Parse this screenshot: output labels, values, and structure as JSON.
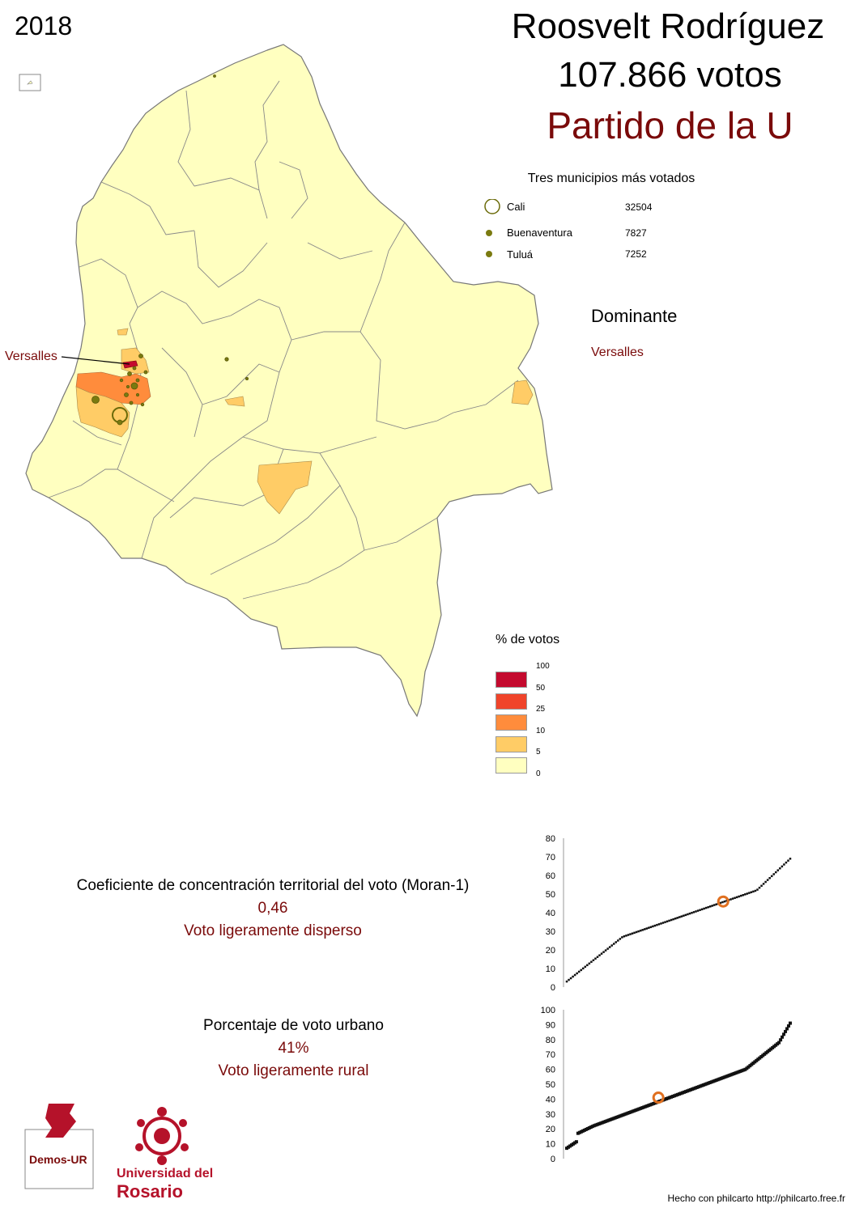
{
  "header": {
    "year": "2018",
    "candidate": "Roosvelt Rodríguez",
    "votes": "107.866 votos",
    "party": "Partido de la U"
  },
  "top_municipalities": {
    "title": "Tres municipios más votados",
    "rows": [
      {
        "name": "Cali",
        "value": "32504"
      },
      {
        "name": "Buenaventura",
        "value": "7827"
      },
      {
        "name": "Tuluá",
        "value": "7252"
      }
    ]
  },
  "dominant": {
    "title": "Dominante",
    "value": "Versalles"
  },
  "map": {
    "callout": "Versalles",
    "colors": {
      "class_0_5": "#FFFFC0",
      "class_5_10": "#FFCC66",
      "class_10_25": "#FF8C3C",
      "class_25_50": "#F0442A",
      "class_50_100": "#C40A2E",
      "circle": "#7A7A10",
      "border": "#777777"
    }
  },
  "legend": {
    "title": "% de votos",
    "breaks": [
      "100",
      "50",
      "25",
      "10",
      "5",
      "0"
    ]
  },
  "stats": {
    "moran": {
      "title": "Coeficiente de concentración territorial del voto (Moran-1)",
      "value": "0,46",
      "description": "Voto ligeramente disperso"
    },
    "urban": {
      "title": "Porcentaje de voto urbano",
      "value": "41%",
      "description": "Voto ligeramente rural"
    }
  },
  "chart_data": [
    {
      "type": "scatter",
      "title": "",
      "ylim": [
        0,
        80
      ],
      "yticks": [
        "0",
        "10",
        "20",
        "30",
        "40",
        "50",
        "60",
        "70",
        "80"
      ],
      "highlight": {
        "rank_fraction": 0.7,
        "value": 46,
        "color": "#E07020"
      }
    },
    {
      "type": "scatter",
      "title": "",
      "ylim": [
        0,
        100
      ],
      "yticks": [
        "0",
        "10",
        "20",
        "30",
        "40",
        "50",
        "60",
        "70",
        "80",
        "90",
        "100"
      ],
      "highlight": {
        "rank_fraction": 0.41,
        "value": 41,
        "color": "#E07020"
      }
    }
  ],
  "credits": {
    "footer": "Hecho con philcarto http://philcarto.free.fr",
    "logo1": "Demos-UR",
    "logo2_line1": "Universidad del",
    "logo2_line2": "Rosario"
  }
}
